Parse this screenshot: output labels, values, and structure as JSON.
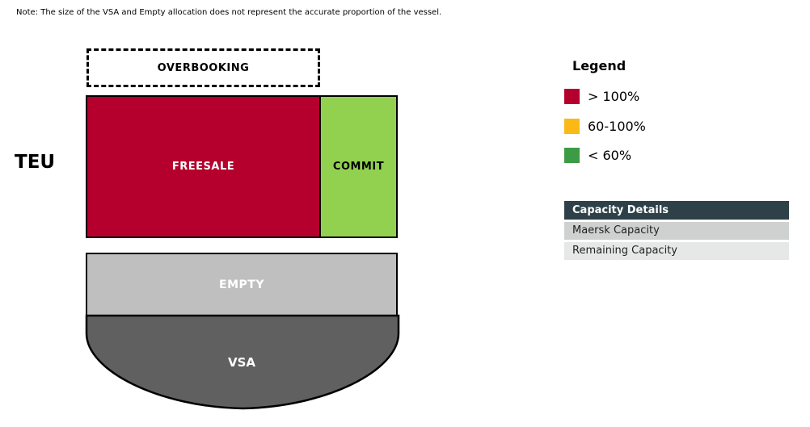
{
  "note": "Note: The size of the VSA and Empty allocation does not represent the accurate proportion of the vessel.",
  "unit_label": "TEU",
  "vessel": {
    "overbooking": "OVERBOOKING",
    "freesale": "FREESALE",
    "commit": "COMMIT",
    "empty": "EMPTY",
    "vsa": "VSA"
  },
  "legend": {
    "title": "Legend",
    "items": [
      {
        "label": "> 100%",
        "color": "#b5002d"
      },
      {
        "label": "60-100%",
        "color": "#fbb917"
      },
      {
        "label": "< 60%",
        "color": "#3d9b45"
      }
    ]
  },
  "capacity_details": {
    "header": "Capacity Details",
    "rows": [
      "Maersk Capacity",
      "Remaining Capacity"
    ]
  }
}
